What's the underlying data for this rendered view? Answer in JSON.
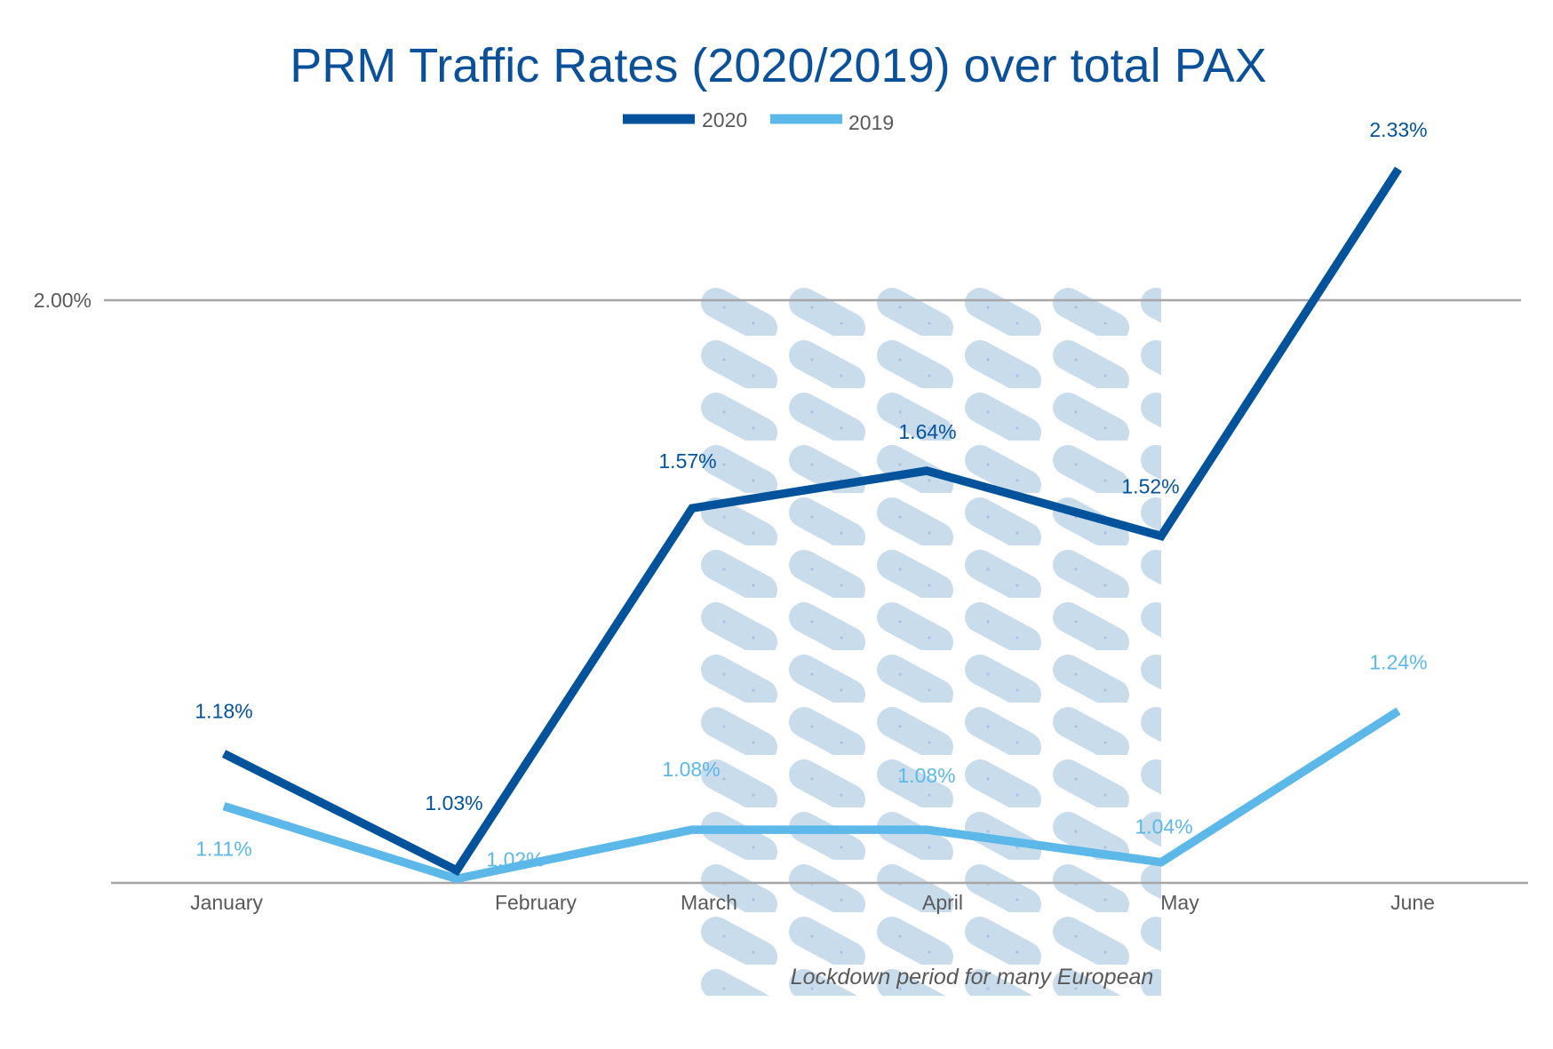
{
  "chart_data": {
    "type": "line",
    "title": "PRM Traffic Rates (2020/2019) over total PAX",
    "categories": [
      "January",
      "February",
      "March",
      "April",
      "May",
      "June"
    ],
    "series": [
      {
        "name": "2020",
        "color": "#03539c",
        "values": [
          1.18,
          1.03,
          1.57,
          1.64,
          1.52,
          2.33
        ],
        "labels": [
          "1.18%",
          "1.03%",
          "1.57%",
          "1.64%",
          "1.52%",
          "2.33%"
        ]
      },
      {
        "name": "2019",
        "color": "#5bb8e9",
        "values": [
          1.11,
          1.02,
          1.08,
          1.08,
          1.04,
          1.24
        ],
        "labels": [
          "1.11%",
          "1.02%",
          "1.08%",
          "1.08%",
          "1.04%",
          "1.24%"
        ]
      }
    ],
    "y_scale": "log",
    "y_ticks": [
      {
        "value": 2.0,
        "label": "2.00%"
      }
    ],
    "grid": true,
    "legend": "top-center",
    "annotation": {
      "text": "Lockdown period for many European",
      "span": [
        "March",
        "May"
      ],
      "fill": "#c9dcec"
    }
  }
}
